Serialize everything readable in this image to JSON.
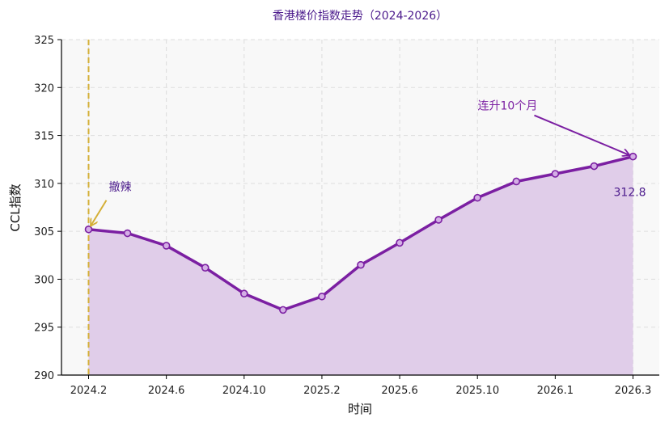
{
  "chart_data": {
    "type": "line",
    "title": "香港楼价指数走势（2024-2026）",
    "xlabel": "时间",
    "ylabel": "CCL指数",
    "ylim": [
      290,
      325
    ],
    "yticks": [
      290,
      295,
      300,
      305,
      310,
      315,
      320,
      325
    ],
    "xtick_labels": [
      "2024.2",
      "2024.6",
      "2024.10",
      "2025.2",
      "2025.6",
      "2025.10",
      "2026.1",
      "2026.3"
    ],
    "x": [
      "2024.2",
      "2024.4",
      "2024.6",
      "2024.8",
      "2024.10",
      "2024.12",
      "2025.2",
      "2025.4",
      "2025.6",
      "2025.8",
      "2025.10",
      "2025.12",
      "2026.1",
      "2026.2",
      "2026.3"
    ],
    "series": [
      {
        "values": [
          305.2,
          304.8,
          303.5,
          301.2,
          298.5,
          296.8,
          298.2,
          301.5,
          303.8,
          306.2,
          308.5,
          310.2,
          311.0,
          311.8,
          312.8
        ]
      }
    ],
    "grid": true,
    "fill_under": true,
    "annotations": [
      {
        "text": "撤辣",
        "target_index": 0,
        "color": "#d4af37",
        "vertical_line": true
      },
      {
        "text": "连升10个月",
        "target_index": 14,
        "color": "#7b1fa2"
      },
      {
        "text": "312.8",
        "target_index": 14,
        "color": "#4b1a8c"
      }
    ],
    "colors": {
      "line": "#7b1fa2",
      "marker_fill": "#d4aee6",
      "area": "#e0cde9",
      "plot_bg": "#f8f8f8",
      "grid": "#dddddd",
      "vline": "#d4af37"
    }
  }
}
